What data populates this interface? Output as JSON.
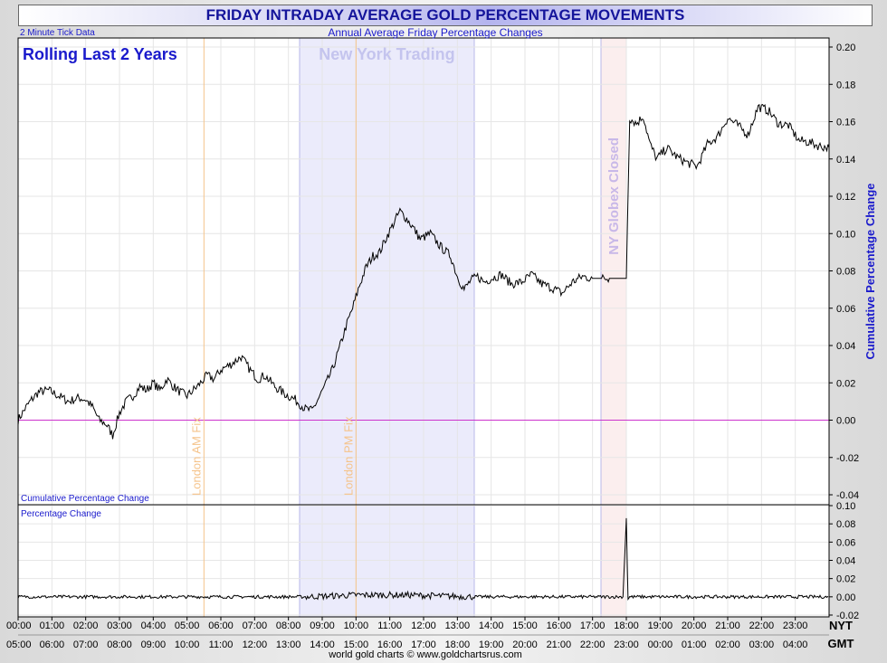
{
  "chart_data": {
    "type": "line",
    "title": "FRIDAY INTRADAY AVERAGE GOLD PERCENTAGE MOVEMENTS",
    "subtitle": "Annual Average Friday Percentage Changes",
    "note_left": "2 Minute Tick Data",
    "period_label": "Rolling Last 2 Years",
    "footer": "world gold charts © www.goldchartsrus.com",
    "colors": {
      "line": "#000000",
      "zero_line": "#cc33cc",
      "ny_band": "#ebebfb",
      "globex_band": "#fbeeee",
      "fix_line": "#f5c38a",
      "label_blue": "#1a1acc"
    },
    "top_panel": {
      "label": "Cumulative Percentage Change",
      "ylabel": "Cumulative Percentage Change",
      "ylim": [
        -0.04,
        0.2
      ],
      "yticks": [
        "0.20",
        "0.18",
        "0.16",
        "0.14",
        "0.12",
        "0.10",
        "0.08",
        "0.06",
        "0.04",
        "0.02",
        "0.00",
        "-0.02",
        "-0.04"
      ],
      "series": [
        {
          "x": [
            0.0,
            0.2,
            0.4,
            0.6,
            0.9,
            1.2,
            1.5,
            1.8,
            2.0,
            2.2,
            2.4,
            2.6,
            2.8,
            3.0,
            3.2,
            3.4,
            3.6,
            3.8,
            4.0,
            4.2,
            4.4,
            4.6,
            4.8,
            5.0,
            5.3,
            5.6,
            5.8,
            6.0,
            6.3,
            6.6,
            6.9,
            7.1,
            7.3,
            7.6,
            7.9,
            8.2,
            8.5,
            8.7,
            8.9,
            9.1,
            9.3,
            9.5,
            9.7,
            9.9,
            10.1,
            10.3,
            10.5,
            10.7,
            10.9,
            11.1,
            11.3,
            11.5,
            11.7,
            11.9,
            12.2,
            12.5,
            12.8,
            13.0,
            13.2,
            13.4,
            13.6,
            13.8,
            14.0,
            14.3,
            14.6,
            14.9,
            15.2,
            15.5,
            15.8,
            16.1,
            16.4,
            16.7,
            17.0,
            17.3,
            17.5,
            17.9,
            18.0,
            18.1,
            18.3,
            18.5,
            18.7,
            18.9,
            19.2,
            19.5,
            19.8,
            20.1,
            20.4,
            20.7,
            21.0,
            21.3,
            21.6,
            21.9,
            22.2,
            22.5,
            22.8,
            23.1,
            23.4,
            23.7,
            24.0
          ],
          "values": [
            0.0,
            0.006,
            0.011,
            0.015,
            0.016,
            0.013,
            0.01,
            0.012,
            0.011,
            0.007,
            0.0,
            -0.002,
            -0.008,
            0.004,
            0.01,
            0.013,
            0.018,
            0.016,
            0.02,
            0.016,
            0.022,
            0.018,
            0.015,
            0.013,
            0.018,
            0.024,
            0.022,
            0.027,
            0.03,
            0.034,
            0.026,
            0.022,
            0.024,
            0.018,
            0.014,
            0.011,
            0.006,
            0.005,
            0.012,
            0.019,
            0.027,
            0.038,
            0.05,
            0.06,
            0.072,
            0.082,
            0.088,
            0.09,
            0.098,
            0.105,
            0.112,
            0.108,
            0.103,
            0.097,
            0.1,
            0.093,
            0.088,
            0.077,
            0.07,
            0.075,
            0.077,
            0.074,
            0.076,
            0.078,
            0.073,
            0.074,
            0.078,
            0.073,
            0.071,
            0.068,
            0.074,
            0.077,
            0.076,
            0.076,
            0.076,
            0.076,
            0.076,
            0.162,
            0.159,
            0.163,
            0.148,
            0.14,
            0.146,
            0.141,
            0.138,
            0.136,
            0.148,
            0.152,
            0.162,
            0.158,
            0.153,
            0.168,
            0.166,
            0.159,
            0.158,
            0.15,
            0.149,
            0.147,
            0.146
          ]
        }
      ]
    },
    "bottom_panel": {
      "label": "Percentage Change",
      "ylim": [
        -0.02,
        0.1
      ],
      "yticks": [
        "0.10",
        "0.08",
        "0.06",
        "0.04",
        "0.02",
        "0.00",
        "-0.02"
      ],
      "series": [
        {
          "x": [
            0,
            8.5,
            10.0,
            11.5,
            13.5,
            17.9,
            18.0,
            18.05,
            18.1,
            24.0
          ],
          "values": [
            0,
            0,
            0.002,
            0.002,
            0,
            0,
            0.086,
            -0.002,
            0,
            0
          ]
        }
      ]
    },
    "x_axis": {
      "range": [
        0,
        24
      ],
      "nyt_label": "NYT",
      "gmt_label": "GMT",
      "nyt_ticks": [
        "00:00",
        "01:00",
        "02:00",
        "03:00",
        "04:00",
        "05:00",
        "06:00",
        "07:00",
        "08:00",
        "09:00",
        "10:00",
        "11:00",
        "12:00",
        "13:00",
        "14:00",
        "15:00",
        "16:00",
        "17:00",
        "18:00",
        "19:00",
        "20:00",
        "21:00",
        "22:00",
        "23:00"
      ],
      "gmt_ticks": [
        "05:00",
        "06:00",
        "07:00",
        "08:00",
        "09:00",
        "10:00",
        "11:00",
        "12:00",
        "13:00",
        "14:00",
        "15:00",
        "16:00",
        "17:00",
        "18:00",
        "19:00",
        "20:00",
        "21:00",
        "22:00",
        "23:00",
        "00:00",
        "01:00",
        "02:00",
        "03:00",
        "04:00"
      ]
    },
    "annotations": {
      "ny_trading": {
        "label": "New York Trading",
        "start": 8.33,
        "end": 13.5
      },
      "globex_closed": {
        "label": "NY Globex Closed",
        "start": 17.25,
        "end": 18.0
      },
      "am_fix": {
        "label": "London AM Fix",
        "x": 5.5
      },
      "pm_fix": {
        "label": "London PM Fix",
        "x": 10.0
      }
    }
  }
}
